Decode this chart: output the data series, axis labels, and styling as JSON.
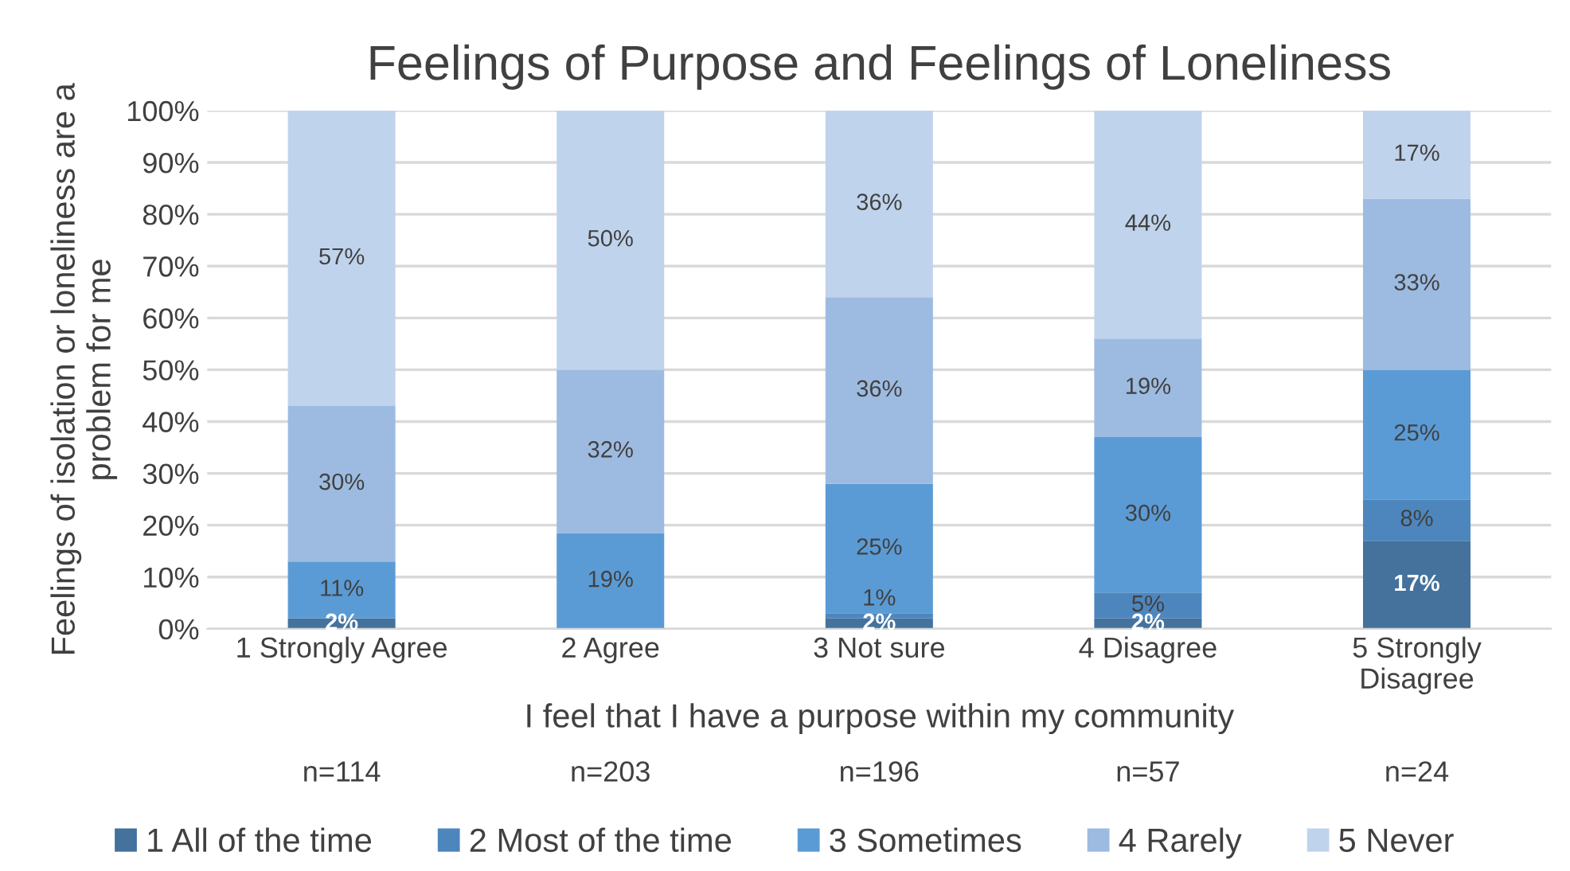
{
  "chart_data": {
    "type": "bar",
    "stacked": true,
    "title": "Feelings of Purpose and Feelings of Loneliness",
    "xlabel": "I feel that I have a purpose within my community",
    "ylabel": "Feelings of isolation or loneliness are a\nproblem for me",
    "categories": [
      "1 Strongly Agree",
      "2 Agree",
      "3 Not sure",
      "4 Disagree",
      "5 Strongly\nDisagree"
    ],
    "series": [
      {
        "name": "1 All of the time",
        "color": "#44729d",
        "values": [
          2,
          null,
          2,
          2,
          17
        ],
        "value_labels": [
          "2%",
          null,
          "2%",
          "2%",
          "17%"
        ]
      },
      {
        "name": "2 Most of the time",
        "color": "#4d86bd",
        "values": [
          null,
          null,
          1,
          5,
          8
        ],
        "value_labels": [
          null,
          null,
          "1%",
          "5%",
          "8%"
        ]
      },
      {
        "name": "3 Sometimes",
        "color": "#5b9bd5",
        "values": [
          11,
          18.5,
          25,
          30,
          25
        ],
        "value_labels": [
          "11%",
          "19%",
          "25%",
          "30%",
          "25%"
        ]
      },
      {
        "name": "4 Rarely",
        "color": "#9dbbe1",
        "values": [
          30,
          31.5,
          36,
          19,
          33
        ],
        "value_labels": [
          "30%",
          "32%",
          "36%",
          "19%",
          "33%"
        ]
      },
      {
        "name": "5 Never",
        "color": "#c0d3ec",
        "values": [
          57,
          50,
          36,
          44,
          17
        ],
        "value_labels": [
          "57%",
          "50%",
          "36%",
          "44%",
          "17%"
        ]
      }
    ],
    "ylim": [
      0,
      100
    ],
    "yticks": [
      {
        "value": 0,
        "label": "0%"
      },
      {
        "value": 10,
        "label": "10%"
      },
      {
        "value": 20,
        "label": "20%"
      },
      {
        "value": 30,
        "label": "30%"
      },
      {
        "value": 40,
        "label": "40%"
      },
      {
        "value": 50,
        "label": "50%"
      },
      {
        "value": 60,
        "label": "60%"
      },
      {
        "value": 70,
        "label": "70%"
      },
      {
        "value": 80,
        "label": "80%"
      },
      {
        "value": 90,
        "label": "90%"
      },
      {
        "value": 100,
        "label": "100%"
      }
    ],
    "grid": "y",
    "legend": "bottom",
    "annotations": [
      "n=114",
      "n=203",
      "n=196",
      "n=57",
      "n=24"
    ]
  }
}
